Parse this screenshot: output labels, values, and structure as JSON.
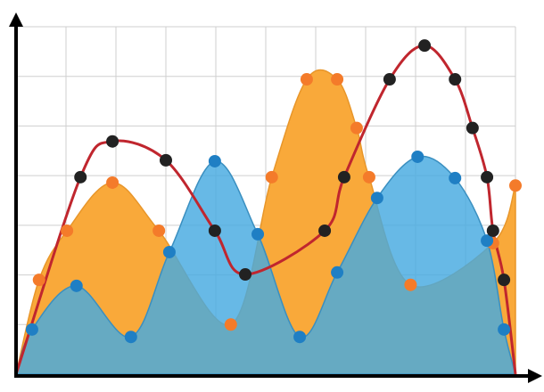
{
  "chart_data": {
    "type": "area-line",
    "xlim": [
      0,
      10
    ],
    "ylim": [
      0,
      7
    ],
    "xticks": [
      0,
      1,
      2,
      3,
      4,
      5,
      6,
      7,
      8,
      9,
      10
    ],
    "yticks": [
      0,
      1,
      2,
      3,
      4,
      5,
      6,
      7
    ],
    "grid": true,
    "series": [
      {
        "kind": "area",
        "color": "#f9a93a",
        "marker_color": "#f47b2a",
        "x": [
          0,
          0.46,
          1.02,
          1.93,
          2.86,
          4.3,
          5.12,
          5.82,
          6.43,
          6.82,
          7.07,
          7.9,
          9.55,
          10
        ],
        "values": [
          0,
          1.9,
          2.89,
          3.86,
          2.89,
          1.0,
          3.97,
          5.94,
          5.94,
          4.96,
          3.97,
          1.8,
          2.64,
          3.8
        ]
      },
      {
        "kind": "area",
        "color": "#45a9e0",
        "marker_color": "#1f7fc4",
        "x": [
          0,
          0.32,
          1.21,
          2.3,
          3.07,
          3.98,
          4.84,
          5.68,
          6.43,
          7.23,
          8.04,
          8.79,
          9.43,
          9.77,
          10
        ],
        "values": [
          0,
          0.9,
          1.78,
          0.75,
          2.46,
          4.29,
          2.82,
          0.75,
          2.05,
          3.55,
          4.38,
          3.95,
          2.69,
          0.9,
          0
        ]
      },
      {
        "kind": "line",
        "color": "#c0262e",
        "marker_color": "#222222",
        "x": [
          0,
          1.29,
          1.93,
          3.0,
          3.98,
          4.59,
          6.18,
          6.57,
          7.48,
          8.18,
          8.79,
          9.14,
          9.43,
          9.55,
          9.77,
          10
        ],
        "values": [
          0,
          3.97,
          4.69,
          4.31,
          2.89,
          2.01,
          2.89,
          3.97,
          5.94,
          6.62,
          5.94,
          4.96,
          3.97,
          2.89,
          1.9,
          0
        ]
      }
    ]
  }
}
